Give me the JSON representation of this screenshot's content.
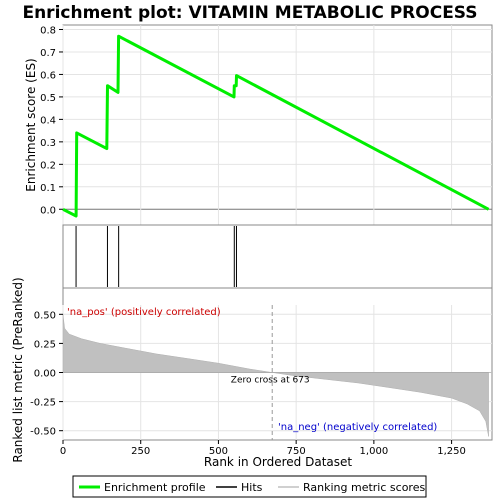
{
  "chart_data": {
    "type": "line",
    "title": "Enrichment plot: VITAMIN METABOLIC PROCESS",
    "top_panel": {
      "ylabel": "Enrichment score (ES)",
      "ylim": [
        -0.07,
        0.82
      ],
      "yticks": [
        0.0,
        0.1,
        0.2,
        0.3,
        0.4,
        0.5,
        0.6,
        0.7,
        0.8
      ],
      "ytick_labels": [
        "0.0",
        "0.1",
        "0.2",
        "0.3",
        "0.4",
        "0.5",
        "0.6",
        "0.7",
        "0.8"
      ],
      "series": [
        {
          "name": "Enrichment profile",
          "color": "#00ee00",
          "x": [
            0,
            42,
            44,
            141,
            143,
            177,
            179,
            550,
            551,
            557,
            558,
            1369
          ],
          "y": [
            0.0,
            -0.03,
            0.34,
            0.27,
            0.55,
            0.52,
            0.77,
            0.5,
            0.55,
            0.55,
            0.595,
            0.0
          ]
        }
      ]
    },
    "hits": [
      42,
      143,
      179,
      551,
      558
    ],
    "bottom_panel": {
      "xlabel": "Rank in Ordered Dataset",
      "ylabel": "Ranked list metric (PreRanked)",
      "ylim": [
        -0.58,
        0.58
      ],
      "yticks": [
        -0.5,
        -0.25,
        0.0,
        0.25,
        0.5
      ],
      "ytick_labels": [
        "-0.50",
        "-0.25",
        "0.00",
        "0.25",
        "0.50"
      ],
      "xlim": [
        0,
        1380
      ],
      "xticks": [
        0,
        250,
        500,
        750,
        1000,
        1250
      ],
      "xtick_labels": [
        "0",
        "250",
        "500",
        "750",
        "1,000",
        "1,250"
      ],
      "metric_curve": {
        "x": [
          0,
          5,
          20,
          60,
          120,
          200,
          300,
          400,
          500,
          600,
          673,
          750,
          850,
          950,
          1050,
          1150,
          1250,
          1300,
          1340,
          1360,
          1369
        ],
        "y": [
          0.5,
          0.38,
          0.33,
          0.29,
          0.25,
          0.21,
          0.16,
          0.12,
          0.08,
          0.03,
          0.0,
          -0.03,
          -0.06,
          -0.09,
          -0.13,
          -0.17,
          -0.22,
          -0.27,
          -0.33,
          -0.42,
          -0.55
        ]
      },
      "zero_cross": 673,
      "zero_cross_label": "Zero cross at 673",
      "pos_label": "'na_pos' (positively correlated)",
      "neg_label": "'na_neg' (negatively correlated)"
    },
    "color_bar": {
      "segments": [
        {
          "from": 0,
          "to": 30,
          "color": "#e8001c"
        },
        {
          "from": 30,
          "to": 120,
          "color": "#f43048"
        },
        {
          "from": 120,
          "to": 300,
          "color": "#fb5a5e"
        },
        {
          "from": 300,
          "to": 410,
          "color": "#fc7c80"
        },
        {
          "from": 410,
          "to": 525,
          "color": "#fc9a9c"
        },
        {
          "from": 525,
          "to": 670,
          "color": "#fcc0e0"
        },
        {
          "from": 670,
          "to": 810,
          "color": "#dcdcfc"
        },
        {
          "from": 810,
          "to": 955,
          "color": "#c0c0fc"
        },
        {
          "from": 955,
          "to": 1060,
          "color": "#8888f8"
        },
        {
          "from": 1060,
          "to": 1260,
          "color": "#6464f0"
        },
        {
          "from": 1260,
          "to": 1369,
          "color": "#2c10d0"
        }
      ]
    },
    "legend": {
      "placement": "bottom",
      "items": [
        {
          "label": "Enrichment profile",
          "color": "#00ee00"
        },
        {
          "label": "Hits",
          "color": "#000000"
        },
        {
          "label": "Ranking metric scores",
          "color": "#c0c0c0"
        }
      ]
    }
  }
}
